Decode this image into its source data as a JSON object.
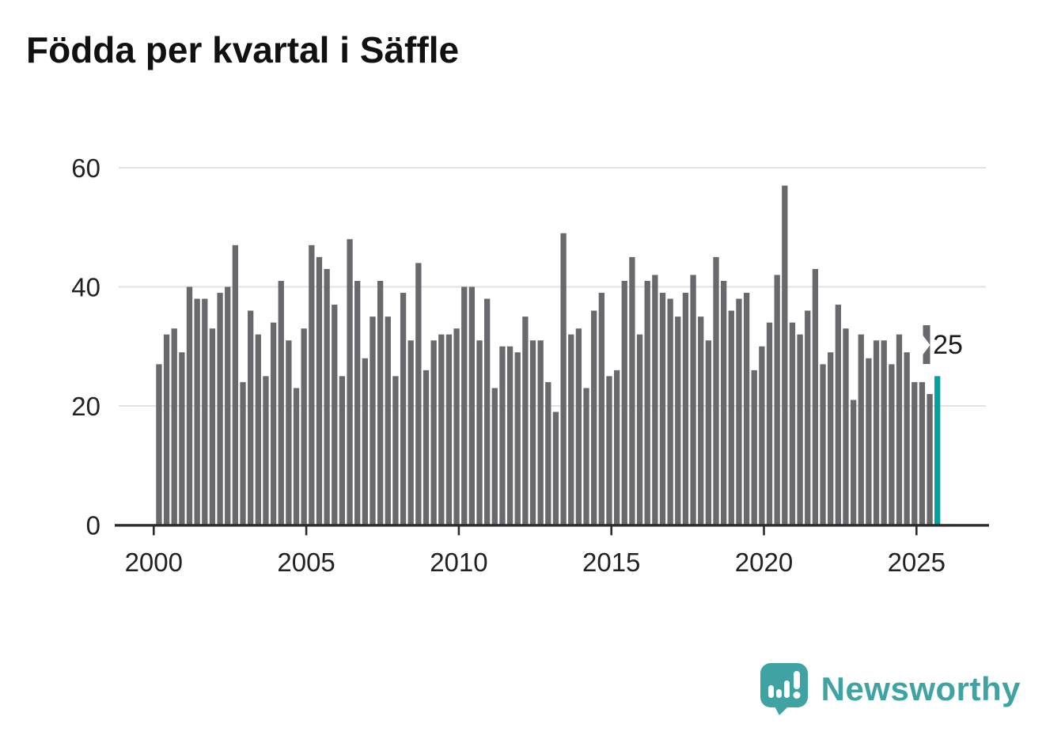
{
  "title": "Födda per kvartal i Säffle",
  "chart_data": {
    "type": "bar",
    "title": "Födda per kvartal i Säffle",
    "xlabel": "",
    "ylabel": "",
    "x_start_year": 2000,
    "start_quarter": "2000-Q1",
    "end_quarter": "2025-Q3",
    "x_tick_years": [
      2000,
      2005,
      2010,
      2015,
      2020,
      2025
    ],
    "y_ticks": [
      0,
      20,
      40,
      60
    ],
    "ylim": [
      0,
      60
    ],
    "grid": true,
    "legend": "none",
    "series": [
      {
        "name": "Födda per kvartal",
        "values": [
          27,
          32,
          33,
          29,
          40,
          38,
          38,
          33,
          39,
          40,
          47,
          24,
          36,
          32,
          25,
          34,
          41,
          31,
          23,
          33,
          47,
          45,
          43,
          37,
          25,
          48,
          41,
          28,
          35,
          41,
          35,
          25,
          39,
          31,
          44,
          26,
          31,
          32,
          32,
          33,
          40,
          40,
          31,
          38,
          23,
          30,
          30,
          29,
          35,
          31,
          31,
          24,
          19,
          49,
          32,
          33,
          23,
          36,
          39,
          25,
          26,
          41,
          45,
          32,
          41,
          42,
          39,
          38,
          35,
          39,
          42,
          35,
          31,
          45,
          41,
          36,
          38,
          39,
          26,
          30,
          34,
          42,
          57,
          34,
          32,
          36,
          43,
          27,
          29,
          37,
          33,
          21,
          32,
          28,
          31,
          31,
          27,
          32,
          29,
          24,
          24,
          22,
          25
        ]
      }
    ],
    "highlight_last": true,
    "annotation": {
      "text": "25",
      "index": 102
    },
    "colors": {
      "bar": "#68686d",
      "accent": "#00a1a1",
      "grid": "#e2e2e2",
      "axis": "#2b2b2b",
      "text": "#222222",
      "annotation_text": "#1a1a1a",
      "annotation_box": "#ffffff"
    }
  },
  "branding": {
    "logo_text": "Newsworthy",
    "logo_color": "#3fa3a3"
  }
}
